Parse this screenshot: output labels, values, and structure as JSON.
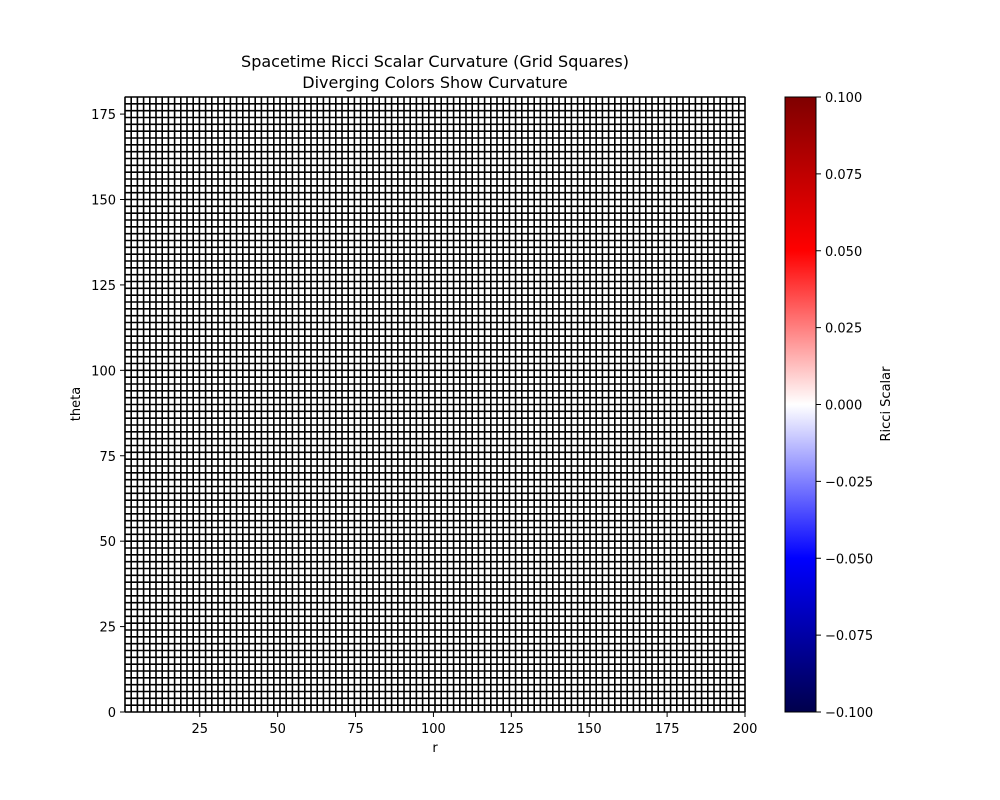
{
  "chart_data": {
    "type": "heatmap",
    "title": "Spacetime Ricci Scalar Curvature (Grid Squares)",
    "subtitle": "Diverging Colors Show Curvature",
    "xlabel": "r",
    "ylabel": "theta",
    "xlim": [
      1,
      200
    ],
    "ylim": [
      0,
      180
    ],
    "x_ticks": [
      25,
      50,
      75,
      100,
      125,
      150,
      175,
      200
    ],
    "y_ticks": [
      0,
      25,
      50,
      75,
      100,
      125,
      150,
      175
    ],
    "x_tick_labels": [
      "25",
      "50",
      "75",
      "100",
      "125",
      "150",
      "175",
      "200"
    ],
    "y_tick_labels": [
      "0",
      "25",
      "50",
      "75",
      "100",
      "125",
      "150",
      "175"
    ],
    "grid_cells_x": 100,
    "grid_cells_y": 90,
    "cell_value": 0.0,
    "cell_edge_color": "#000000",
    "colormap": "seismic",
    "colorbar": {
      "label": "Ricci Scalar",
      "range": [
        -0.1,
        0.1
      ],
      "ticks": [
        -0.1,
        -0.075,
        -0.05,
        -0.025,
        0.0,
        0.025,
        0.05,
        0.075,
        0.1
      ],
      "tick_labels": [
        "−0.100",
        "−0.075",
        "−0.050",
        "−0.025",
        "0.000",
        "0.025",
        "0.050",
        "0.075",
        "0.100"
      ],
      "colors": [
        "#00004c",
        "#0000ff",
        "#ffffff",
        "#ff0000",
        "#7f0000"
      ]
    }
  }
}
